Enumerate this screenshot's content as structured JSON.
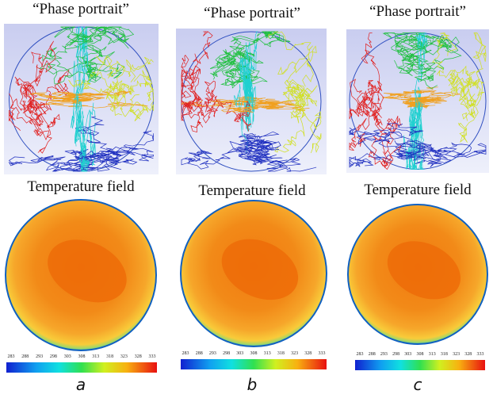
{
  "panels": [
    {
      "portrait_title": "“Phase portrait”",
      "field_title": "Temperature field",
      "colorbar_ticks": [
        283,
        288,
        293,
        298,
        303,
        308,
        313,
        318,
        323,
        328,
        333
      ],
      "label": "a"
    },
    {
      "portrait_title": "“Phase portrait”",
      "field_title": "Temperature field",
      "colorbar_ticks": [
        283,
        288,
        293,
        298,
        303,
        308,
        313,
        318,
        323,
        328,
        333
      ],
      "label": "b"
    },
    {
      "portrait_title": "“Phase portrait”",
      "field_title": "Temperature field",
      "colorbar_ticks": [
        283,
        288,
        293,
        298,
        303,
        308,
        313,
        318,
        323,
        328,
        333
      ],
      "label": "c"
    }
  ]
}
